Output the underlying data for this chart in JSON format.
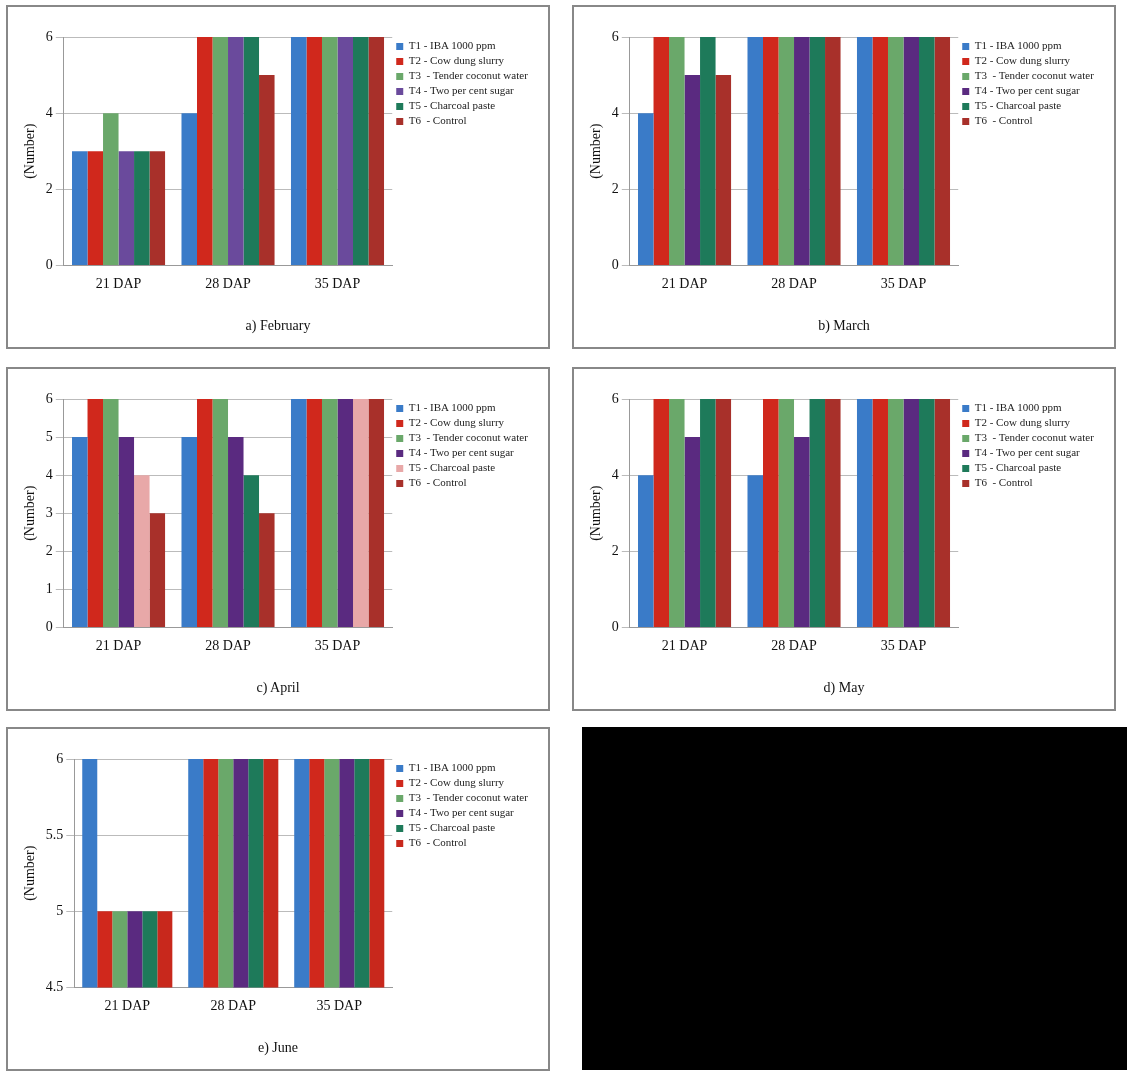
{
  "chart_data": [
    {
      "type": "bar",
      "title": "a) February",
      "ylabel": "(Number)",
      "categories": [
        "21 DAP",
        "28 DAP",
        "35 DAP"
      ],
      "ylim": [
        0,
        6
      ],
      "yticks": [
        0,
        2,
        4,
        6
      ],
      "grid": "y",
      "legend": "right",
      "series": [
        {
          "name": "T1 - IBA 1000 ppm",
          "color": "#3a7bc8",
          "values": [
            3,
            4,
            6
          ]
        },
        {
          "name": "T2 - Cow dung slurry",
          "color": "#d0281c",
          "values": [
            3,
            6,
            6
          ]
        },
        {
          "name": "T3  - Tender coconut water",
          "color": "#6aa86a",
          "values": [
            4,
            6,
            6
          ]
        },
        {
          "name": "T4 - Two per cent sugar",
          "color": "#6a4a9c",
          "values": [
            3,
            6,
            6
          ]
        },
        {
          "name": "T5 - Charcoal paste",
          "color": "#1e7a5a",
          "values": [
            3,
            6,
            6
          ]
        },
        {
          "name": "T6  - Control",
          "color": "#a8302a",
          "values": [
            3,
            5,
            6
          ]
        }
      ]
    },
    {
      "type": "bar",
      "title": "b) March",
      "ylabel": "(Number)",
      "categories": [
        "21 DAP",
        "28 DAP",
        "35 DAP"
      ],
      "ylim": [
        0,
        6
      ],
      "yticks": [
        0,
        2,
        4,
        6
      ],
      "grid": "y",
      "legend": "right",
      "series": [
        {
          "name": "T1 - IBA 1000 ppm",
          "color": "#3a7bc8",
          "values": [
            4,
            6,
            6
          ]
        },
        {
          "name": "T2 - Cow dung slurry",
          "color": "#d0281c",
          "values": [
            6,
            6,
            6
          ]
        },
        {
          "name": "T3  - Tender coconut water",
          "color": "#6aa86a",
          "values": [
            6,
            6,
            6
          ]
        },
        {
          "name": "T4 - Two per cent sugar",
          "color": "#5a2a80",
          "values": [
            5,
            6,
            6
          ]
        },
        {
          "name": "T5 - Charcoal paste",
          "color": "#1e7a5a",
          "values": [
            6,
            6,
            6
          ]
        },
        {
          "name": "T6  - Control",
          "color": "#a8302a",
          "values": [
            5,
            6,
            6
          ]
        }
      ]
    },
    {
      "type": "bar",
      "title": "c) April",
      "ylabel": "(Number)",
      "categories": [
        "21 DAP",
        "28 DAP",
        "35 DAP"
      ],
      "ylim": [
        0,
        6
      ],
      "yticks": [
        0,
        1,
        2,
        3,
        4,
        5,
        6
      ],
      "grid": "y",
      "legend": "right",
      "series": [
        {
          "name": "T1 - IBA 1000 ppm",
          "color": "#3a7bc8",
          "values": [
            5,
            5,
            6
          ]
        },
        {
          "name": "T2 - Cow dung slurry",
          "color": "#d0281c",
          "values": [
            6,
            6,
            6
          ]
        },
        {
          "name": "T3  - Tender coconut water",
          "color": "#6aa86a",
          "values": [
            6,
            6,
            6
          ]
        },
        {
          "name": "T4 - Two per cent sugar",
          "color": "#5a2a80",
          "values": [
            5,
            5,
            6
          ]
        },
        {
          "name": "T5 - Charcoal paste",
          "color": "#e8a8a8",
          "colors": [
            "#e8a8a8",
            "#1e7a5a",
            "#e8a8a8"
          ],
          "values": [
            4,
            4,
            6
          ]
        },
        {
          "name": "T6  - Control",
          "color": "#a8302a",
          "values": [
            3,
            3,
            6
          ]
        }
      ]
    },
    {
      "type": "bar",
      "title": "d) May",
      "ylabel": "(Number)",
      "categories": [
        "21 DAP",
        "28 DAP",
        "35 DAP"
      ],
      "ylim": [
        0,
        6
      ],
      "yticks": [
        0,
        2,
        4,
        6
      ],
      "grid": "y",
      "legend": "right",
      "series": [
        {
          "name": "T1 - IBA 1000 ppm",
          "color": "#3a7bc8",
          "values": [
            4,
            4,
            6
          ]
        },
        {
          "name": "T2 - Cow dung slurry",
          "color": "#d0281c",
          "values": [
            6,
            6,
            6
          ]
        },
        {
          "name": "T3  - Tender coconut water",
          "color": "#6aa86a",
          "values": [
            6,
            6,
            6
          ]
        },
        {
          "name": "T4 - Two per cent sugar",
          "color": "#5a2a80",
          "values": [
            5,
            5,
            6
          ]
        },
        {
          "name": "T5 - Charcoal paste",
          "color": "#1e7a5a",
          "values": [
            6,
            6,
            6
          ]
        },
        {
          "name": "T6  - Control",
          "color": "#a8302a",
          "values": [
            6,
            6,
            6
          ]
        }
      ]
    },
    {
      "type": "bar",
      "title": "e) June",
      "ylabel": "(Number)",
      "categories": [
        "21 DAP",
        "28 DAP",
        "35 DAP"
      ],
      "ylim": [
        4.5,
        6
      ],
      "yticks": [
        4.5,
        5,
        5.5,
        6
      ],
      "grid": "y",
      "legend": "right",
      "series": [
        {
          "name": "T1 - IBA 1000 ppm",
          "color": "#3a7bc8",
          "values": [
            6,
            6,
            6
          ]
        },
        {
          "name": "T2 - Cow dung slurry",
          "color": "#d0281c",
          "values": [
            5,
            6,
            6
          ]
        },
        {
          "name": "T3  - Tender coconut water",
          "color": "#6aa86a",
          "values": [
            5,
            6,
            6
          ]
        },
        {
          "name": "T4 - Two per cent sugar",
          "color": "#5a2a80",
          "values": [
            5,
            6,
            6
          ]
        },
        {
          "name": "T5 - Charcoal paste",
          "color": "#1e7a5a",
          "values": [
            5,
            6,
            6
          ]
        },
        {
          "name": "T6  - Control",
          "color": "#c8281c",
          "values": [
            5,
            6,
            6
          ]
        }
      ]
    }
  ]
}
